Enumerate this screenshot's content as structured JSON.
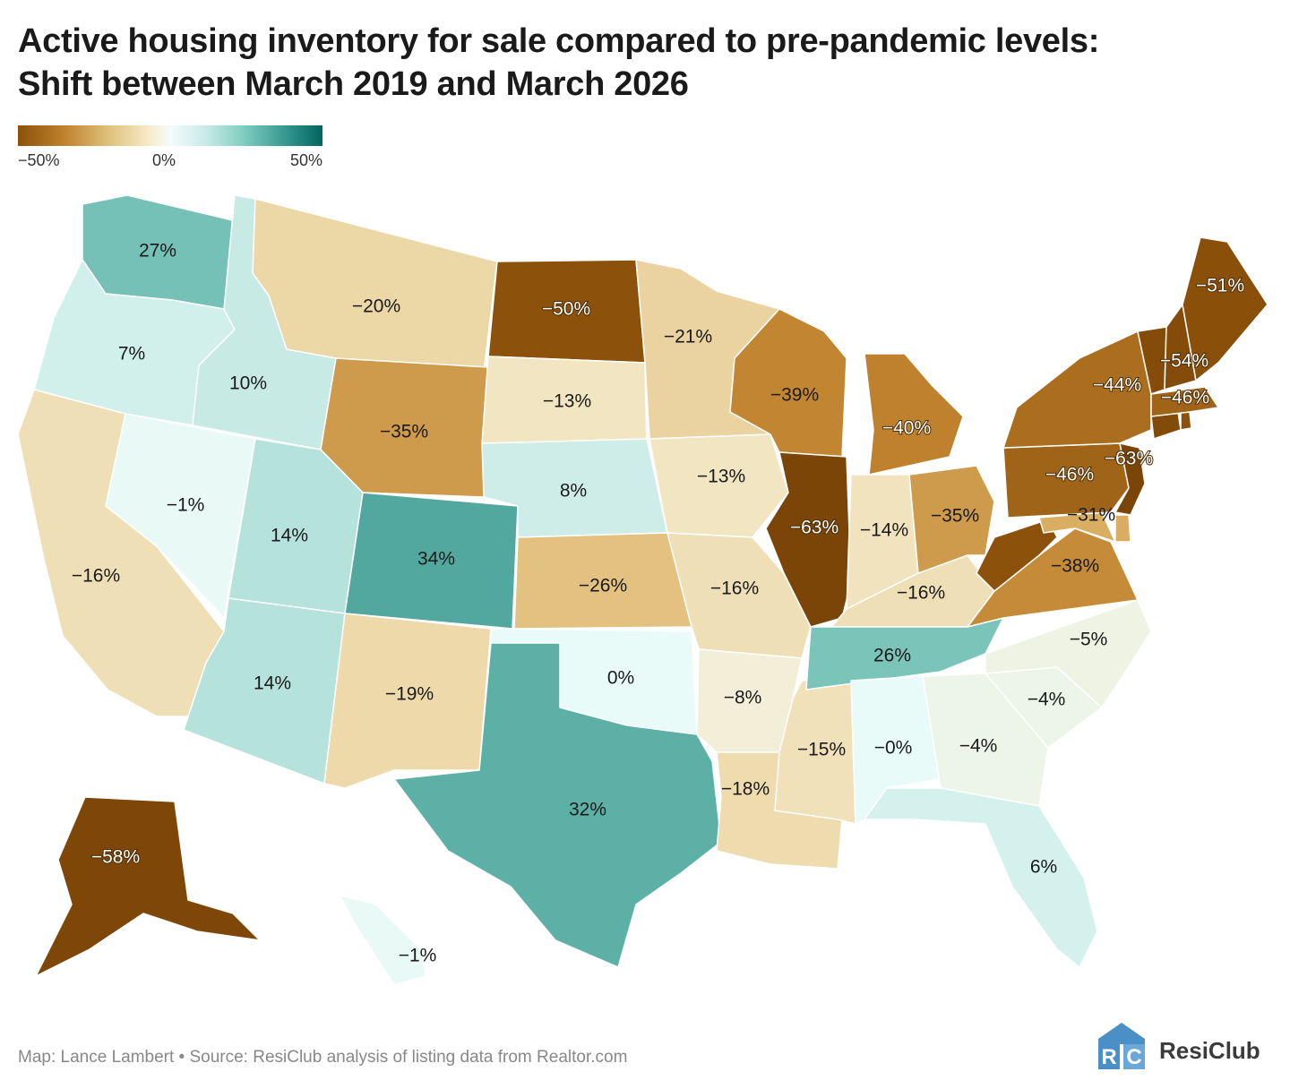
{
  "title_line1": "Active housing inventory for sale compared to pre-pandemic levels:",
  "title_line2": "Shift between March 2019 and March 2026",
  "legend": {
    "min_label": "−50%",
    "mid_label": "0%",
    "max_label": "50%"
  },
  "footer": "Map: Lance Lambert • Source: ResiClub analysis of listing data from Realtor.com",
  "brand": {
    "name": "ResiClub",
    "logo_letters": "RC"
  },
  "colors": {
    "neg_strong": "#8c510a",
    "neutral": "#f5fbfb",
    "pos_strong": "#01665e"
  },
  "map_data": {
    "type": "choropleth",
    "metric": "change in active housing inventory, March 2019 vs March 2026",
    "states": [
      {
        "code": "WA",
        "value": 27,
        "label": "27%"
      },
      {
        "code": "OR",
        "value": 7,
        "label": "7%"
      },
      {
        "code": "CA",
        "value": -16,
        "label": "−16%"
      },
      {
        "code": "ID",
        "value": 10,
        "label": "10%"
      },
      {
        "code": "NV",
        "value": -1,
        "label": "−1%"
      },
      {
        "code": "UT",
        "value": 14,
        "label": "14%"
      },
      {
        "code": "AZ",
        "value": 14,
        "label": "14%"
      },
      {
        "code": "MT",
        "value": -20,
        "label": "−20%"
      },
      {
        "code": "WY",
        "value": -35,
        "label": "−35%"
      },
      {
        "code": "CO",
        "value": 34,
        "label": "34%"
      },
      {
        "code": "NM",
        "value": -19,
        "label": "−19%"
      },
      {
        "code": "ND",
        "value": -50,
        "label": "−50%"
      },
      {
        "code": "SD",
        "value": -13,
        "label": "−13%"
      },
      {
        "code": "NE",
        "value": 8,
        "label": "8%"
      },
      {
        "code": "KS",
        "value": -26,
        "label": "−26%"
      },
      {
        "code": "OK",
        "value": 0,
        "label": "0%"
      },
      {
        "code": "TX",
        "value": 32,
        "label": "32%"
      },
      {
        "code": "MN",
        "value": -21,
        "label": "−21%"
      },
      {
        "code": "IA",
        "value": -13,
        "label": "−13%"
      },
      {
        "code": "MO",
        "value": -16,
        "label": "−16%"
      },
      {
        "code": "AR",
        "value": -8,
        "label": "−8%"
      },
      {
        "code": "LA",
        "value": -18,
        "label": "−18%"
      },
      {
        "code": "WI",
        "value": -39,
        "label": "−39%"
      },
      {
        "code": "IL",
        "value": -63,
        "label": "−63%"
      },
      {
        "code": "MS",
        "value": -15,
        "label": "−15%"
      },
      {
        "code": "MI",
        "value": -40,
        "label": "−40%"
      },
      {
        "code": "IN",
        "value": -14,
        "label": "−14%"
      },
      {
        "code": "KY",
        "value": -16,
        "label": "−16%"
      },
      {
        "code": "TN",
        "value": 26,
        "label": "26%"
      },
      {
        "code": "AL",
        "value": 0,
        "label": "−0%"
      },
      {
        "code": "OH",
        "value": -35,
        "label": "−35%"
      },
      {
        "code": "GA",
        "value": -4,
        "label": "−4%"
      },
      {
        "code": "FL",
        "value": 6,
        "label": "6%"
      },
      {
        "code": "SC",
        "value": -4,
        "label": "−4%"
      },
      {
        "code": "NC",
        "value": -5,
        "label": "−5%"
      },
      {
        "code": "VA",
        "value": -38,
        "label": "−38%"
      },
      {
        "code": "WV",
        "value": -50
      },
      {
        "code": "MD",
        "value": -31,
        "label": "−31%"
      },
      {
        "code": "DE",
        "value": -31
      },
      {
        "code": "PA",
        "value": -46,
        "label": "−46%"
      },
      {
        "code": "NJ",
        "value": -63,
        "label": "−63%"
      },
      {
        "code": "NY",
        "value": -44,
        "label": "−44%"
      },
      {
        "code": "CT",
        "value": -55
      },
      {
        "code": "RI",
        "value": -50
      },
      {
        "code": "MA",
        "value": -46,
        "label": "−46%"
      },
      {
        "code": "VT",
        "value": -54
      },
      {
        "code": "NH",
        "value": -54,
        "label": "−54%"
      },
      {
        "code": "ME",
        "value": -51,
        "label": "−51%"
      },
      {
        "code": "AK",
        "value": -58,
        "label": "−58%"
      },
      {
        "code": "HI",
        "value": -1,
        "label": "−1%"
      }
    ]
  }
}
